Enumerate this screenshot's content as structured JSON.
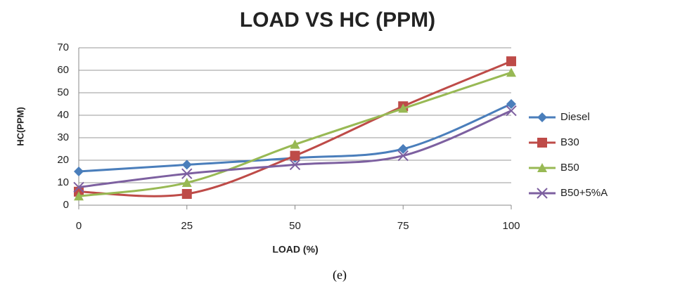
{
  "chart_data": {
    "type": "line",
    "title": "LOAD VS HC (PPM)",
    "x_label": "LOAD (%)",
    "y_label": "HC(PPM)",
    "x": [
      0,
      25,
      50,
      75,
      100
    ],
    "series": [
      {
        "name": "Diesel",
        "color": "#4a7ebb",
        "marker": "diamond",
        "values": [
          15,
          18,
          21,
          25,
          45
        ]
      },
      {
        "name": "B30",
        "color": "#be4b48",
        "marker": "square",
        "values": [
          6,
          5,
          22,
          44,
          64
        ]
      },
      {
        "name": "B50",
        "color": "#98b954",
        "marker": "triangle",
        "values": [
          4,
          10,
          27,
          43,
          59
        ]
      },
      {
        "name": "B50+5%A",
        "color": "#7d60a0",
        "marker": "x",
        "values": [
          8,
          14,
          18,
          22,
          42
        ]
      }
    ],
    "xlim": [
      0,
      100
    ],
    "xticks": [
      0,
      25,
      50,
      75,
      100
    ],
    "ylim": [
      0,
      70
    ],
    "yticks": [
      0,
      10,
      20,
      30,
      40,
      50,
      60,
      70
    ],
    "grid": true,
    "legend": "right",
    "smooth": true,
    "caption": "(e)"
  }
}
